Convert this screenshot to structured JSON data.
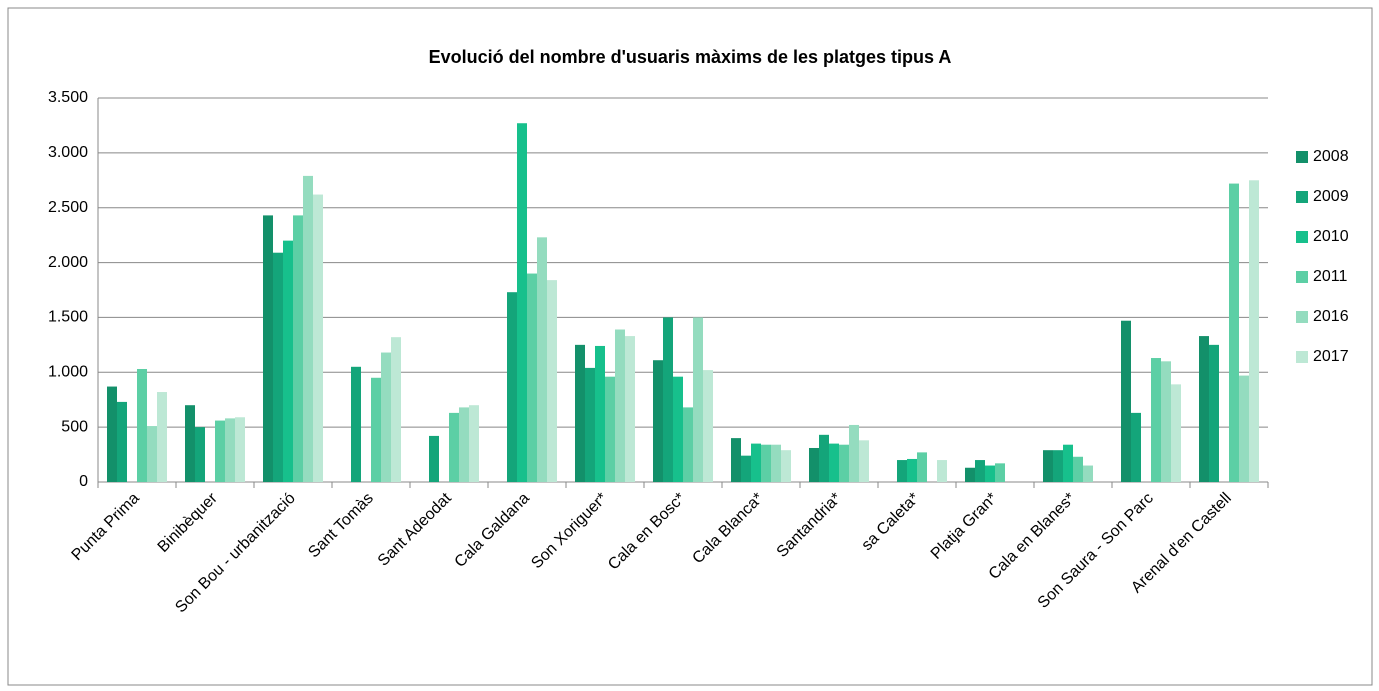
{
  "chart_data": {
    "type": "bar",
    "title": "Evolució del nombre d'usuaris màxims de les platges tipus A",
    "categories": [
      "Punta Prima",
      "Binibèquer",
      "Son Bou - urbanització",
      "Sant Tomàs",
      "Sant Adeodat",
      "Cala Galdana",
      "Son Xoriguer*",
      "Cala en Bosc*",
      "Cala Blanca*",
      "Santandria*",
      "sa Caleta*",
      "Platja Gran*",
      "Cala en Blanes*",
      "Son Saura - Son Parc",
      "Arenal d'en Castell"
    ],
    "series": [
      {
        "name": "2008",
        "color": "#13906a",
        "values": [
          870,
          700,
          2430,
          null,
          null,
          null,
          1250,
          1110,
          400,
          310,
          null,
          130,
          290,
          1470,
          1330
        ]
      },
      {
        "name": "2009",
        "color": "#14a57a",
        "values": [
          730,
          500,
          2090,
          1050,
          420,
          1730,
          1040,
          1500,
          240,
          430,
          200,
          200,
          290,
          630,
          1250
        ]
      },
      {
        "name": "2010",
        "color": "#17c08c",
        "values": [
          null,
          null,
          2200,
          null,
          null,
          3270,
          1240,
          960,
          350,
          350,
          210,
          150,
          340,
          null,
          null
        ]
      },
      {
        "name": "2011",
        "color": "#5ccfa5",
        "values": [
          1030,
          560,
          2430,
          950,
          630,
          1900,
          960,
          680,
          340,
          340,
          270,
          170,
          230,
          1130,
          2720
        ]
      },
      {
        "name": "2016",
        "color": "#94dcbf",
        "values": [
          510,
          580,
          2790,
          1180,
          680,
          2230,
          1390,
          1500,
          340,
          520,
          null,
          null,
          150,
          1100,
          970
        ]
      },
      {
        "name": "2017",
        "color": "#bde8d5",
        "values": [
          820,
          590,
          2620,
          1320,
          700,
          1840,
          1330,
          1020,
          290,
          380,
          200,
          null,
          null,
          890,
          2750
        ]
      }
    ],
    "ylim": [
      0,
      3500
    ],
    "yticks": [
      0,
      500,
      {
        "value": 1000,
        "label": "1.000"
      },
      {
        "value": 1500,
        "label": "1.500"
      },
      {
        "value": 2000,
        "label": "2.000"
      },
      {
        "value": 2500,
        "label": "2.500"
      },
      {
        "value": 3000,
        "label": "3.000"
      },
      {
        "value": 3500,
        "label": "3.500"
      }
    ],
    "grid": true,
    "legend": "right"
  }
}
